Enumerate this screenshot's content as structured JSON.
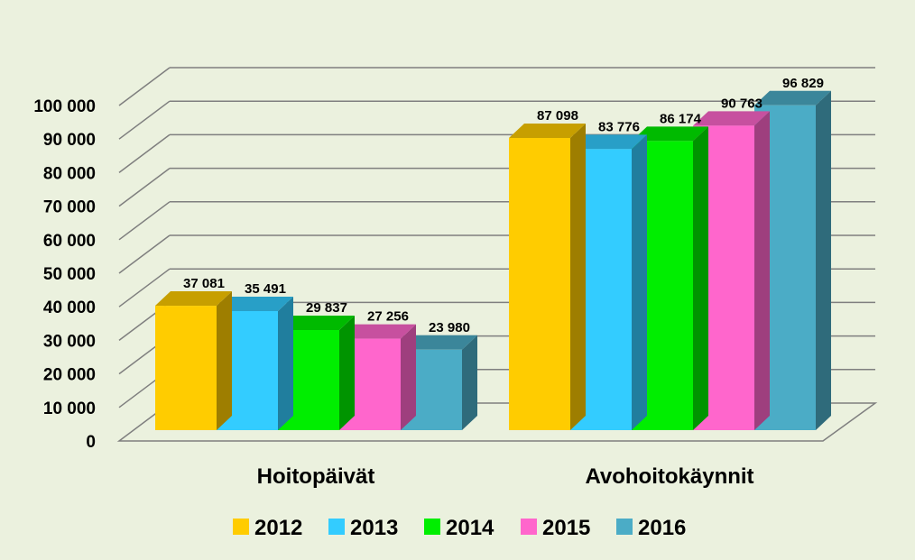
{
  "chart_data": {
    "type": "bar",
    "style": "3d-clustered-column",
    "categories": [
      "Hoitopäivät",
      "Avohoitokäynnit"
    ],
    "series": [
      {
        "name": "2012",
        "color": "#ffcc00",
        "values": [
          37081,
          87098
        ],
        "labels": [
          "37 081",
          "87 098"
        ]
      },
      {
        "name": "2013",
        "color": "#33ccff",
        "values": [
          35491,
          83776
        ],
        "labels": [
          "35 491",
          "83 776"
        ]
      },
      {
        "name": "2014",
        "color": "#00ee00",
        "values": [
          29837,
          86174
        ],
        "labels": [
          "29 837",
          "86 174"
        ]
      },
      {
        "name": "2015",
        "color": "#ff66cc",
        "values": [
          27256,
          90763
        ],
        "labels": [
          "27 256",
          "90 763"
        ]
      },
      {
        "name": "2016",
        "color": "#4bacc6",
        "values": [
          23980,
          96829
        ],
        "labels": [
          "23 980",
          "96 829"
        ]
      }
    ],
    "ylim": [
      0,
      100000
    ],
    "yticks": [
      {
        "value": 0,
        "label": "0"
      },
      {
        "value": 10000,
        "label": "10 000"
      },
      {
        "value": 20000,
        "label": "20 000"
      },
      {
        "value": 30000,
        "label": "30 000"
      },
      {
        "value": 40000,
        "label": "40 000"
      },
      {
        "value": 50000,
        "label": "50 000"
      },
      {
        "value": 60000,
        "label": "60 000"
      },
      {
        "value": 70000,
        "label": "70 000"
      },
      {
        "value": 80000,
        "label": "80 000"
      },
      {
        "value": 90000,
        "label": "90 000"
      },
      {
        "value": 100000,
        "label": "100 000"
      }
    ],
    "grid": true,
    "legend_position": "bottom",
    "background_color": "#ebf1de",
    "gridline_color": "#7f7f7f"
  }
}
